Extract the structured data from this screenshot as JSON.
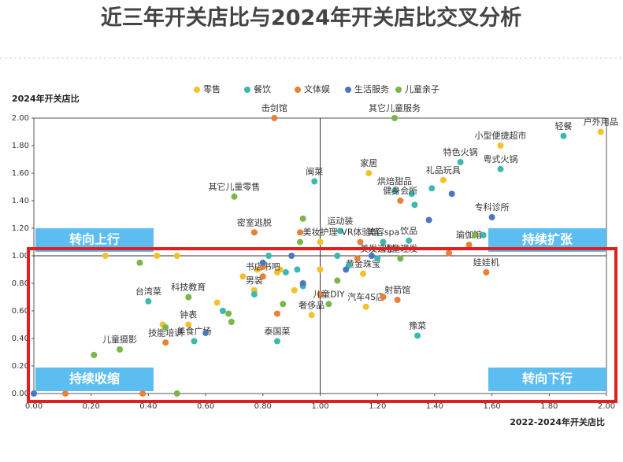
{
  "chart_data": {
    "type": "scatter",
    "title": "近三年开关店比与2024年开关店比交叉分析",
    "x_label": "2022-2024年开关店比",
    "y_label": "2024年开关店比",
    "xlim": [
      0,
      2
    ],
    "ylim": [
      0,
      2
    ],
    "xticks": [
      {
        "value": 0,
        "label": "0.00"
      },
      {
        "value": 0.2,
        "label": "0.20"
      },
      {
        "value": 0.4,
        "label": "0.40"
      },
      {
        "value": 0.6,
        "label": "0.60"
      },
      {
        "value": 0.8,
        "label": "0.80"
      },
      {
        "value": 1,
        "label": "1.00"
      },
      {
        "value": 1.2,
        "label": "1.20"
      },
      {
        "value": 1.4,
        "label": "1.40"
      },
      {
        "value": 1.6,
        "label": "1.60"
      },
      {
        "value": 1.8,
        "label": "1.80"
      },
      {
        "value": 2,
        "label": "2.00"
      }
    ],
    "yticks": [
      {
        "value": 0,
        "label": "0.00"
      },
      {
        "value": 0.2,
        "label": "0.20"
      },
      {
        "value": 0.4,
        "label": "0.40"
      },
      {
        "value": 0.6,
        "label": "0.60"
      },
      {
        "value": 0.8,
        "label": "0.80"
      },
      {
        "value": 1,
        "label": "1.00"
      },
      {
        "value": 1.2,
        "label": "1.20"
      },
      {
        "value": 1.4,
        "label": "1.40"
      },
      {
        "value": 1.6,
        "label": "1.60"
      },
      {
        "value": 1.8,
        "label": "1.80"
      },
      {
        "value": 2,
        "label": "2.00"
      }
    ],
    "reference_lines": {
      "x": 1,
      "y": 1
    },
    "quadrant_labels": {
      "top_left": "转向上行",
      "top_right": "持续扩张",
      "bottom_left": "持续收缩",
      "bottom_right": "转向下行"
    },
    "series": [
      {
        "name": "零售",
        "color": "#f2c12e",
        "x": [
          1.63,
          1.98,
          1.17,
          1.43,
          1.0,
          1.15,
          0.77,
          0.54,
          0.97,
          1.16,
          0.25,
          0.43,
          0.5,
          0.78,
          0.86,
          0.64,
          0.45,
          0.91,
          1.0,
          0.85,
          0.73
        ],
        "values": [
          1.8,
          1.9,
          1.6,
          1.55,
          1.1,
          0.87,
          0.75,
          0.5,
          0.57,
          0.63,
          1.0,
          1.0,
          1.0,
          0.9,
          0.9,
          0.66,
          0.5,
          0.75,
          0.9,
          0.88,
          0.85
        ],
        "labels": [
          "小型便捷超市",
          "户外用品",
          "家居",
          "礼品玩具",
          "美妆护理",
          "黄金珠宝",
          "男装",
          "钟表",
          "奢侈品",
          "汽车4S店",
          null,
          null,
          null,
          null,
          null,
          null,
          null,
          null,
          null,
          null,
          null
        ]
      },
      {
        "name": "餐饮",
        "color": "#3cb8b0",
        "x": [
          1.85,
          1.49,
          1.63,
          0.98,
          1.26,
          1.07,
          1.22,
          1.31,
          1.2,
          0.4,
          1.34,
          0.56,
          0.85,
          1.32,
          1.39,
          1.33,
          1.57,
          0.82,
          0.88,
          0.92,
          0.77,
          0.94,
          1.06,
          1.1,
          0.66
        ],
        "values": [
          1.87,
          1.68,
          1.63,
          1.54,
          1.47,
          1.18,
          1.1,
          1.11,
          0.98,
          0.67,
          0.42,
          0.38,
          0.38,
          1.45,
          1.49,
          1.37,
          1.15,
          1.0,
          0.88,
          0.9,
          0.72,
          0.78,
          1.0,
          0.93,
          0.6
        ],
        "labels": [
          "轻餐",
          "特色火锅",
          "粤式火锅",
          "闽菜",
          "烘焙甜品",
          "运动装",
          "美容spa",
          "饮品",
          "美发造型",
          "台湾菜",
          "豫菜",
          "美食广场",
          "泰国菜",
          null,
          null,
          null,
          null,
          null,
          null,
          null,
          null,
          null,
          null,
          null,
          null
        ]
      },
      {
        "name": "文体娱",
        "color": "#e8803a",
        "x": [
          0.84,
          1.28,
          0.77,
          1.14,
          1.52,
          1.58,
          0.8,
          1.27,
          0.46,
          0.11,
          0.38,
          0.93,
          1.45,
          1.22,
          1.0,
          0.85,
          1.13,
          0.8
        ],
        "values": [
          2.0,
          1.4,
          1.17,
          1.1,
          1.08,
          0.88,
          0.85,
          0.68,
          0.37,
          0.0,
          0.0,
          1.17,
          1.02,
          0.7,
          0.72,
          0.58,
          0.98,
          0.92
        ],
        "labels": [
          "击剑馆",
          "健身会所",
          "密室逃脱",
          "VR体验馆",
          "瑜伽馆",
          "娃娃机",
          "书店书吧",
          "射箭馆",
          "技能培训",
          null,
          null,
          null,
          null,
          null,
          null,
          null,
          null,
          null
        ]
      },
      {
        "name": "生活服务",
        "color": "#4a78c0",
        "x": [
          1.6,
          0.0,
          1.46,
          1.38,
          0.9,
          0.94,
          1.09,
          0.6,
          1.18,
          0.8
        ],
        "values": [
          1.28,
          0.0,
          1.45,
          1.26,
          1.0,
          0.8,
          0.9,
          0.44,
          1.0,
          0.95
        ],
        "labels": [
          "专科诊所",
          null,
          null,
          null,
          null,
          null,
          null,
          null,
          null,
          null
        ]
      },
      {
        "name": "儿童亲子",
        "color": "#7ab648",
        "x": [
          1.26,
          0.7,
          1.28,
          1.03,
          0.54,
          0.3,
          0.5,
          0.21,
          0.37,
          0.46,
          0.68,
          0.94,
          1.54,
          0.93,
          1.06,
          0.69,
          0.87
        ],
        "values": [
          2.0,
          1.43,
          0.98,
          0.65,
          0.7,
          0.32,
          0.0,
          0.28,
          0.95,
          0.48,
          0.58,
          1.27,
          1.15,
          1.1,
          0.82,
          0.52,
          0.65
        ],
        "labels": [
          "其它儿童服务",
          "其它儿童零售",
          "儿童理发",
          "儿童DIY",
          "科技教育",
          "儿童摄影",
          null,
          null,
          null,
          null,
          null,
          null,
          null,
          null,
          null,
          null,
          null
        ]
      }
    ]
  }
}
